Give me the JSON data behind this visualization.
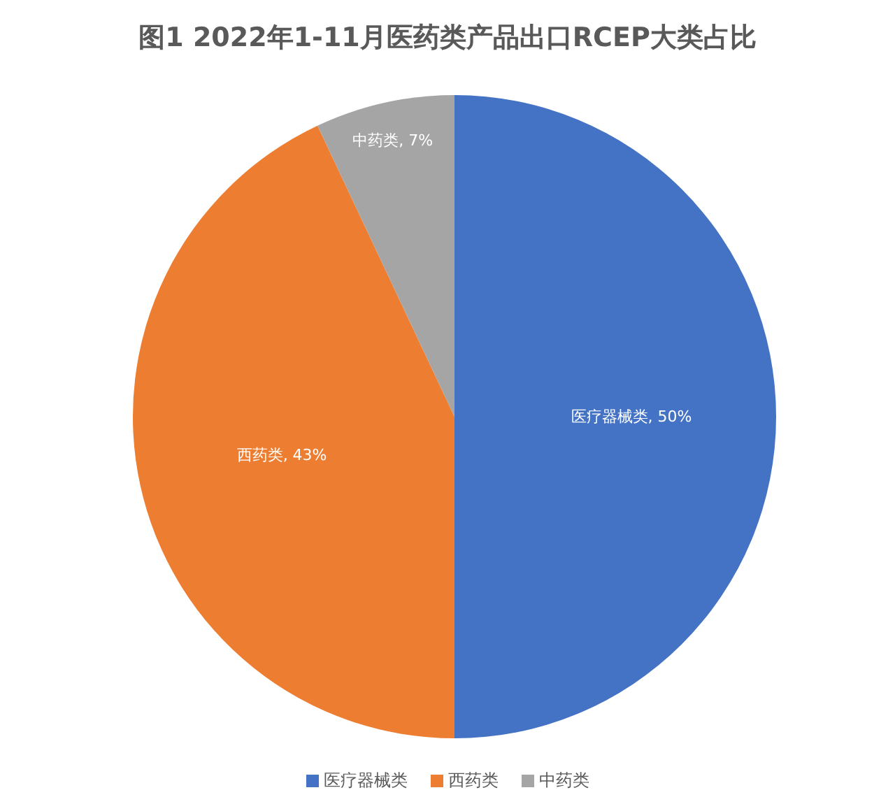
{
  "chart_data": {
    "type": "pie",
    "title": "图1 2022年1-11月医药类产品出口RCEP大类占比",
    "categories": [
      "医疗器械类",
      "西药类",
      "中药类"
    ],
    "values": [
      50,
      43,
      7
    ],
    "colors": [
      "#4472c4",
      "#ed7d31",
      "#a5a5a5"
    ],
    "value_labels": [
      "医疗器械类, 50%",
      "西药类, 43%",
      "中药类, 7%"
    ],
    "legend": "bottom"
  }
}
